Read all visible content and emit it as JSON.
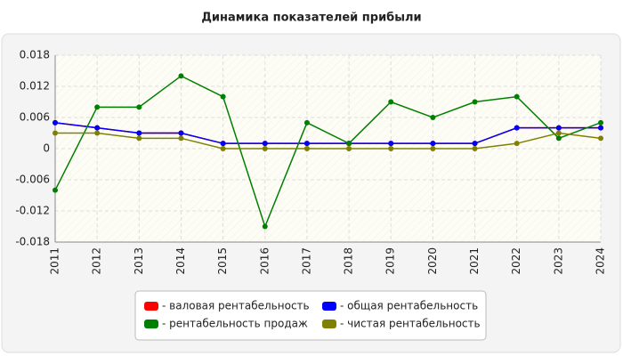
{
  "chart_data": {
    "type": "line",
    "title": "Динамика показателей прибыли",
    "categories": [
      "2011",
      "2012",
      "2013",
      "2014",
      "2015",
      "2016",
      "2017",
      "2018",
      "2019",
      "2020",
      "2021",
      "2022",
      "2023",
      "2024"
    ],
    "series": [
      {
        "name": "- валовая рентабельность",
        "color": "#ff0000",
        "values": [
          0.005,
          0.004,
          0.003,
          0.003,
          0.001,
          0.001,
          0.001,
          0.001,
          0.001,
          0.001,
          0.001,
          0.004,
          0.004,
          0.004
        ]
      },
      {
        "name": "- общая рентабельность",
        "color": "#0000ff",
        "values": [
          0.005,
          0.004,
          0.003,
          0.003,
          0.001,
          0.001,
          0.001,
          0.001,
          0.001,
          0.001,
          0.001,
          0.004,
          0.004,
          0.004
        ]
      },
      {
        "name": "- рентабельность продаж",
        "color": "#008000",
        "values": [
          -0.008,
          0.008,
          0.008,
          0.014,
          0.01,
          -0.015,
          0.005,
          0.001,
          0.009,
          0.006,
          0.009,
          0.01,
          0.002,
          0.005
        ]
      },
      {
        "name": "- чистая рентабельность",
        "color": "#808000",
        "values": [
          0.003,
          0.003,
          0.002,
          0.002,
          0,
          0,
          0,
          0,
          0,
          0,
          0,
          0.001,
          0.003,
          0.002
        ]
      }
    ],
    "ylim": [
      -0.018,
      0.018
    ],
    "yticks": [
      -0.018,
      -0.012,
      -0.006,
      0,
      0.006,
      0.012,
      0.018
    ],
    "grid": true
  }
}
